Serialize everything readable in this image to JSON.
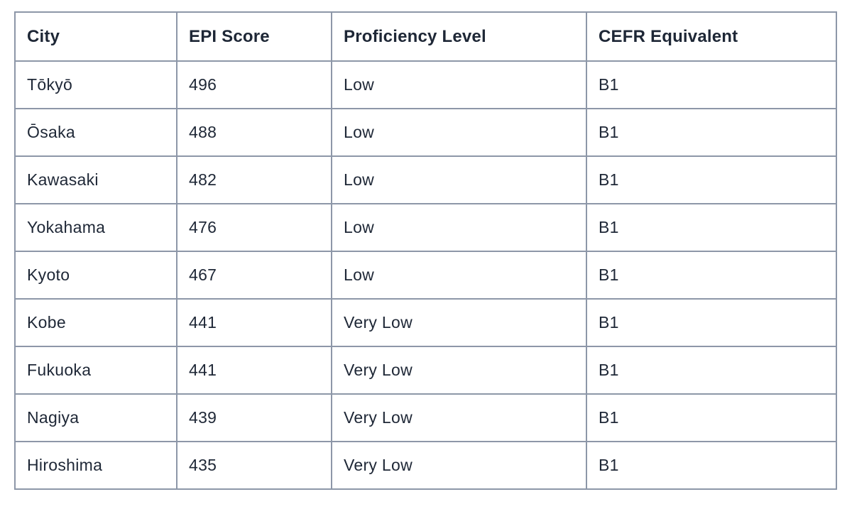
{
  "colors": {
    "border": "#8d97a8",
    "text": "#1e2736",
    "background": "#ffffff"
  },
  "table": {
    "columns": [
      {
        "key": "city",
        "label": "City"
      },
      {
        "key": "epi_score",
        "label": "EPI Score"
      },
      {
        "key": "proficiency_level",
        "label": "Proficiency Level"
      },
      {
        "key": "cefr_equivalent",
        "label": "CEFR Equivalent"
      }
    ],
    "rows": [
      {
        "city": "Tōkyō",
        "epi_score": "496",
        "proficiency_level": "Low",
        "cefr_equivalent": "B1"
      },
      {
        "city": "Ōsaka",
        "epi_score": "488",
        "proficiency_level": "Low",
        "cefr_equivalent": "B1"
      },
      {
        "city": "Kawasaki",
        "epi_score": "482",
        "proficiency_level": "Low",
        "cefr_equivalent": "B1"
      },
      {
        "city": "Yokahama",
        "epi_score": "476",
        "proficiency_level": "Low",
        "cefr_equivalent": "B1"
      },
      {
        "city": "Kyoto",
        "epi_score": "467",
        "proficiency_level": "Low",
        "cefr_equivalent": "B1"
      },
      {
        "city": "Kobe",
        "epi_score": "441",
        "proficiency_level": "Very Low",
        "cefr_equivalent": "B1"
      },
      {
        "city": "Fukuoka",
        "epi_score": "441",
        "proficiency_level": "Very Low",
        "cefr_equivalent": "B1"
      },
      {
        "city": "Nagiya",
        "epi_score": "439",
        "proficiency_level": "Very Low",
        "cefr_equivalent": "B1"
      },
      {
        "city": "Hiroshima",
        "epi_score": "435",
        "proficiency_level": "Very Low",
        "cefr_equivalent": "B1"
      }
    ]
  }
}
